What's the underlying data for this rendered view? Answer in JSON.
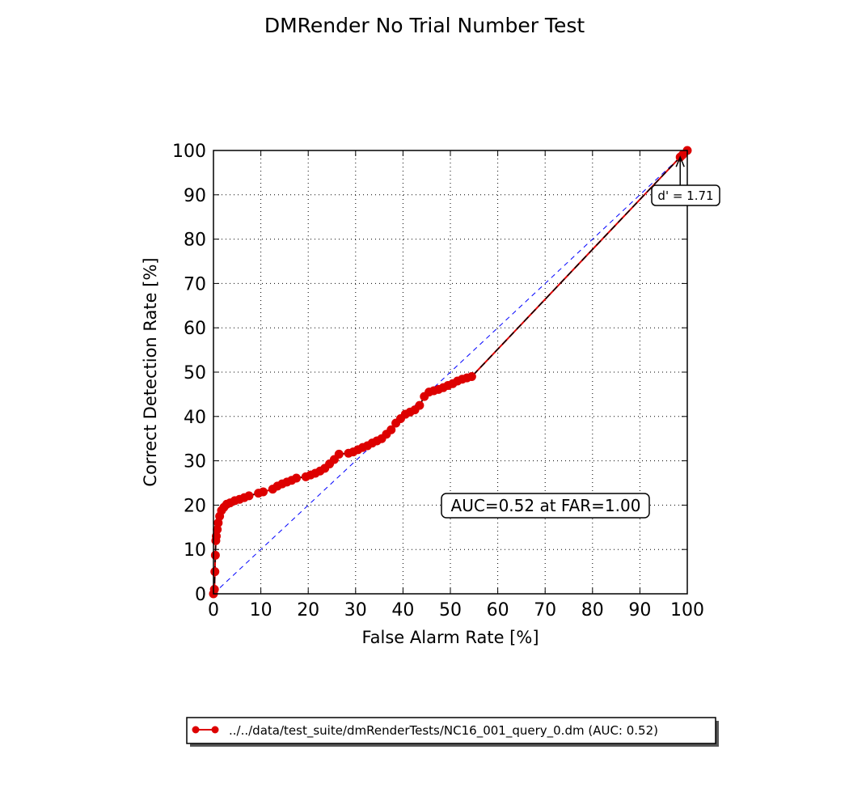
{
  "chart_data": {
    "type": "line",
    "title": "DMRender No Trial Number Test",
    "xlabel": "False Alarm Rate [%]",
    "ylabel": "Correct Detection Rate [%]",
    "xlim": [
      0,
      100
    ],
    "ylim": [
      0,
      100
    ],
    "xticks": [
      "0",
      "10",
      "20",
      "30",
      "40",
      "50",
      "60",
      "70",
      "80",
      "90",
      "100"
    ],
    "yticks": [
      "0",
      "10",
      "20",
      "30",
      "40",
      "50",
      "60",
      "70",
      "80",
      "90",
      "100"
    ],
    "grid": true,
    "legend_position": "bottom-center",
    "series": [
      {
        "name": "../../data/test_suite/dmRenderTests/NC16_001_query_0.dm (AUC: 0.52)",
        "color": "#dd0000",
        "marker": "circle",
        "x": [
          0,
          0.2,
          0.3,
          0.4,
          0.5,
          0.6,
          0.8,
          1.0,
          1.3,
          1.7,
          2.2,
          2.8,
          3.5,
          4.5,
          5.5,
          6.5,
          7.5,
          9.5,
          10.5,
          12.5,
          13.5,
          14.5,
          15.5,
          16.5,
          17.5,
          19.5,
          20.5,
          21.5,
          22.5,
          23.5,
          24.5,
          25.5,
          26.5,
          28.5,
          29.5,
          30.5,
          31.5,
          32.5,
          33.5,
          34.5,
          35.5,
          36.5,
          37.5,
          38.5,
          39.5,
          40.5,
          41.5,
          42.5,
          43.5,
          44.5,
          45.5,
          46.5,
          47.5,
          48.5,
          49.5,
          50.5,
          51.5,
          52.5,
          53.5,
          54.5,
          98.5,
          99.0,
          100
        ],
        "y": [
          0,
          1.0,
          5.0,
          8.7,
          12.0,
          13.0,
          14.5,
          16.0,
          17.5,
          18.8,
          19.5,
          20.2,
          20.5,
          21.0,
          21.3,
          21.7,
          22.1,
          22.7,
          23.0,
          23.6,
          24.3,
          24.8,
          25.2,
          25.6,
          26.1,
          26.4,
          26.8,
          27.2,
          27.7,
          28.3,
          29.3,
          30.3,
          31.5,
          31.7,
          32.0,
          32.5,
          33.0,
          33.4,
          34.0,
          34.5,
          35.0,
          36.0,
          37.0,
          38.5,
          39.5,
          40.5,
          41.0,
          41.5,
          42.5,
          44.5,
          45.5,
          45.8,
          46.1,
          46.5,
          47.0,
          47.4,
          48.0,
          48.4,
          48.7,
          49.0,
          98.5,
          99.0,
          100
        ]
      }
    ],
    "chance_line": {
      "x": [
        0,
        100
      ],
      "y": [
        0,
        100
      ],
      "color": "#0000ff",
      "style": "dashed"
    },
    "annotations": [
      {
        "text": "d' = 1.71",
        "x": 98.5,
        "y": 98.5,
        "arrow": true
      },
      {
        "text": "AUC=0.52 at FAR=1.00",
        "x": 70,
        "y": 20
      }
    ]
  }
}
